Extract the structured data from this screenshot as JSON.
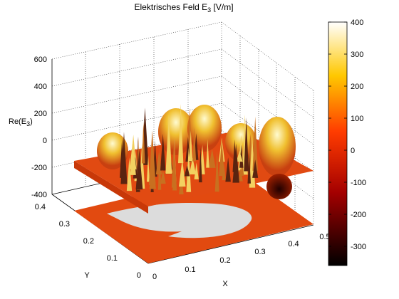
{
  "chart_data": {
    "type": "surface",
    "title": "Elektrisches Feld E",
    "title_sub": "3",
    "title_suffix": " [V/m]",
    "zlabel": "Re(E",
    "zlabel_sub": "3",
    "zlabel_suffix": ")",
    "xlabel": "X",
    "ylabel": "Y",
    "xlim": [
      0,
      0.5
    ],
    "ylim": [
      0,
      0.4
    ],
    "zlim": [
      -400,
      600
    ],
    "xticks": [
      "0",
      "0.1",
      "0.2",
      "0.3",
      "0.4",
      "0.5"
    ],
    "yticks": [
      "0",
      "0.1",
      "0.2",
      "0.3",
      "0.4"
    ],
    "zticks": [
      "-400",
      "-200",
      "0",
      "200",
      "400",
      "600"
    ],
    "grid": true,
    "colormap": "hot",
    "colorbar": {
      "ticks": [
        "400",
        "300",
        "200",
        "100",
        "0",
        "-100",
        "-200",
        "-300"
      ],
      "range": [
        -360,
        400
      ]
    },
    "peaks": [
      {
        "x": 0.05,
        "y": 0.35,
        "z": 230
      },
      {
        "x": 0.14,
        "y": 0.36,
        "z": 280
      },
      {
        "x": 0.26,
        "y": 0.36,
        "z": 300
      },
      {
        "x": 0.36,
        "y": 0.36,
        "z": 270
      },
      {
        "x": 0.46,
        "y": 0.36,
        "z": 300
      },
      {
        "x": 0.45,
        "y": 0.22,
        "z": 360
      },
      {
        "x": 0.45,
        "y": 0.14,
        "z": -280
      }
    ],
    "base_plane_color": "#e24a10",
    "projection_color": "#dcdcdc"
  }
}
